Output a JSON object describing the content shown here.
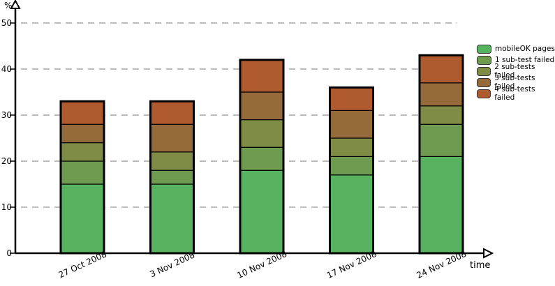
{
  "chart_data": {
    "type": "bar",
    "stacked": true,
    "ylabel": "%",
    "xlabel": "time",
    "ylim": [
      0,
      55
    ],
    "yticks": [
      0,
      10,
      20,
      30,
      40,
      50
    ],
    "grid": "horizontal-dashed",
    "legend_position": "top-right",
    "categories": [
      "27 Oct 2008",
      "3 Nov 2008",
      "10 Nov 2008",
      "17 Nov 2008",
      "24 Nov 2008"
    ],
    "series": [
      {
        "name": "mobileOK pages",
        "color": "#57b35f",
        "values": [
          15,
          15,
          18,
          17,
          21
        ]
      },
      {
        "name": "1 sub-test failed",
        "color": "#6f9b50",
        "values": [
          5,
          3,
          5,
          4,
          7
        ]
      },
      {
        "name": "2 sub-tests failed",
        "color": "#7f8c45",
        "values": [
          4,
          4,
          6,
          4,
          4
        ]
      },
      {
        "name": "3 sub-tests failed",
        "color": "#956b3c",
        "values": [
          4,
          6,
          6,
          6,
          5
        ]
      },
      {
        "name": "4 sub-tests failed",
        "color": "#b05a30",
        "values": [
          5,
          5,
          7,
          5,
          6
        ]
      }
    ]
  }
}
